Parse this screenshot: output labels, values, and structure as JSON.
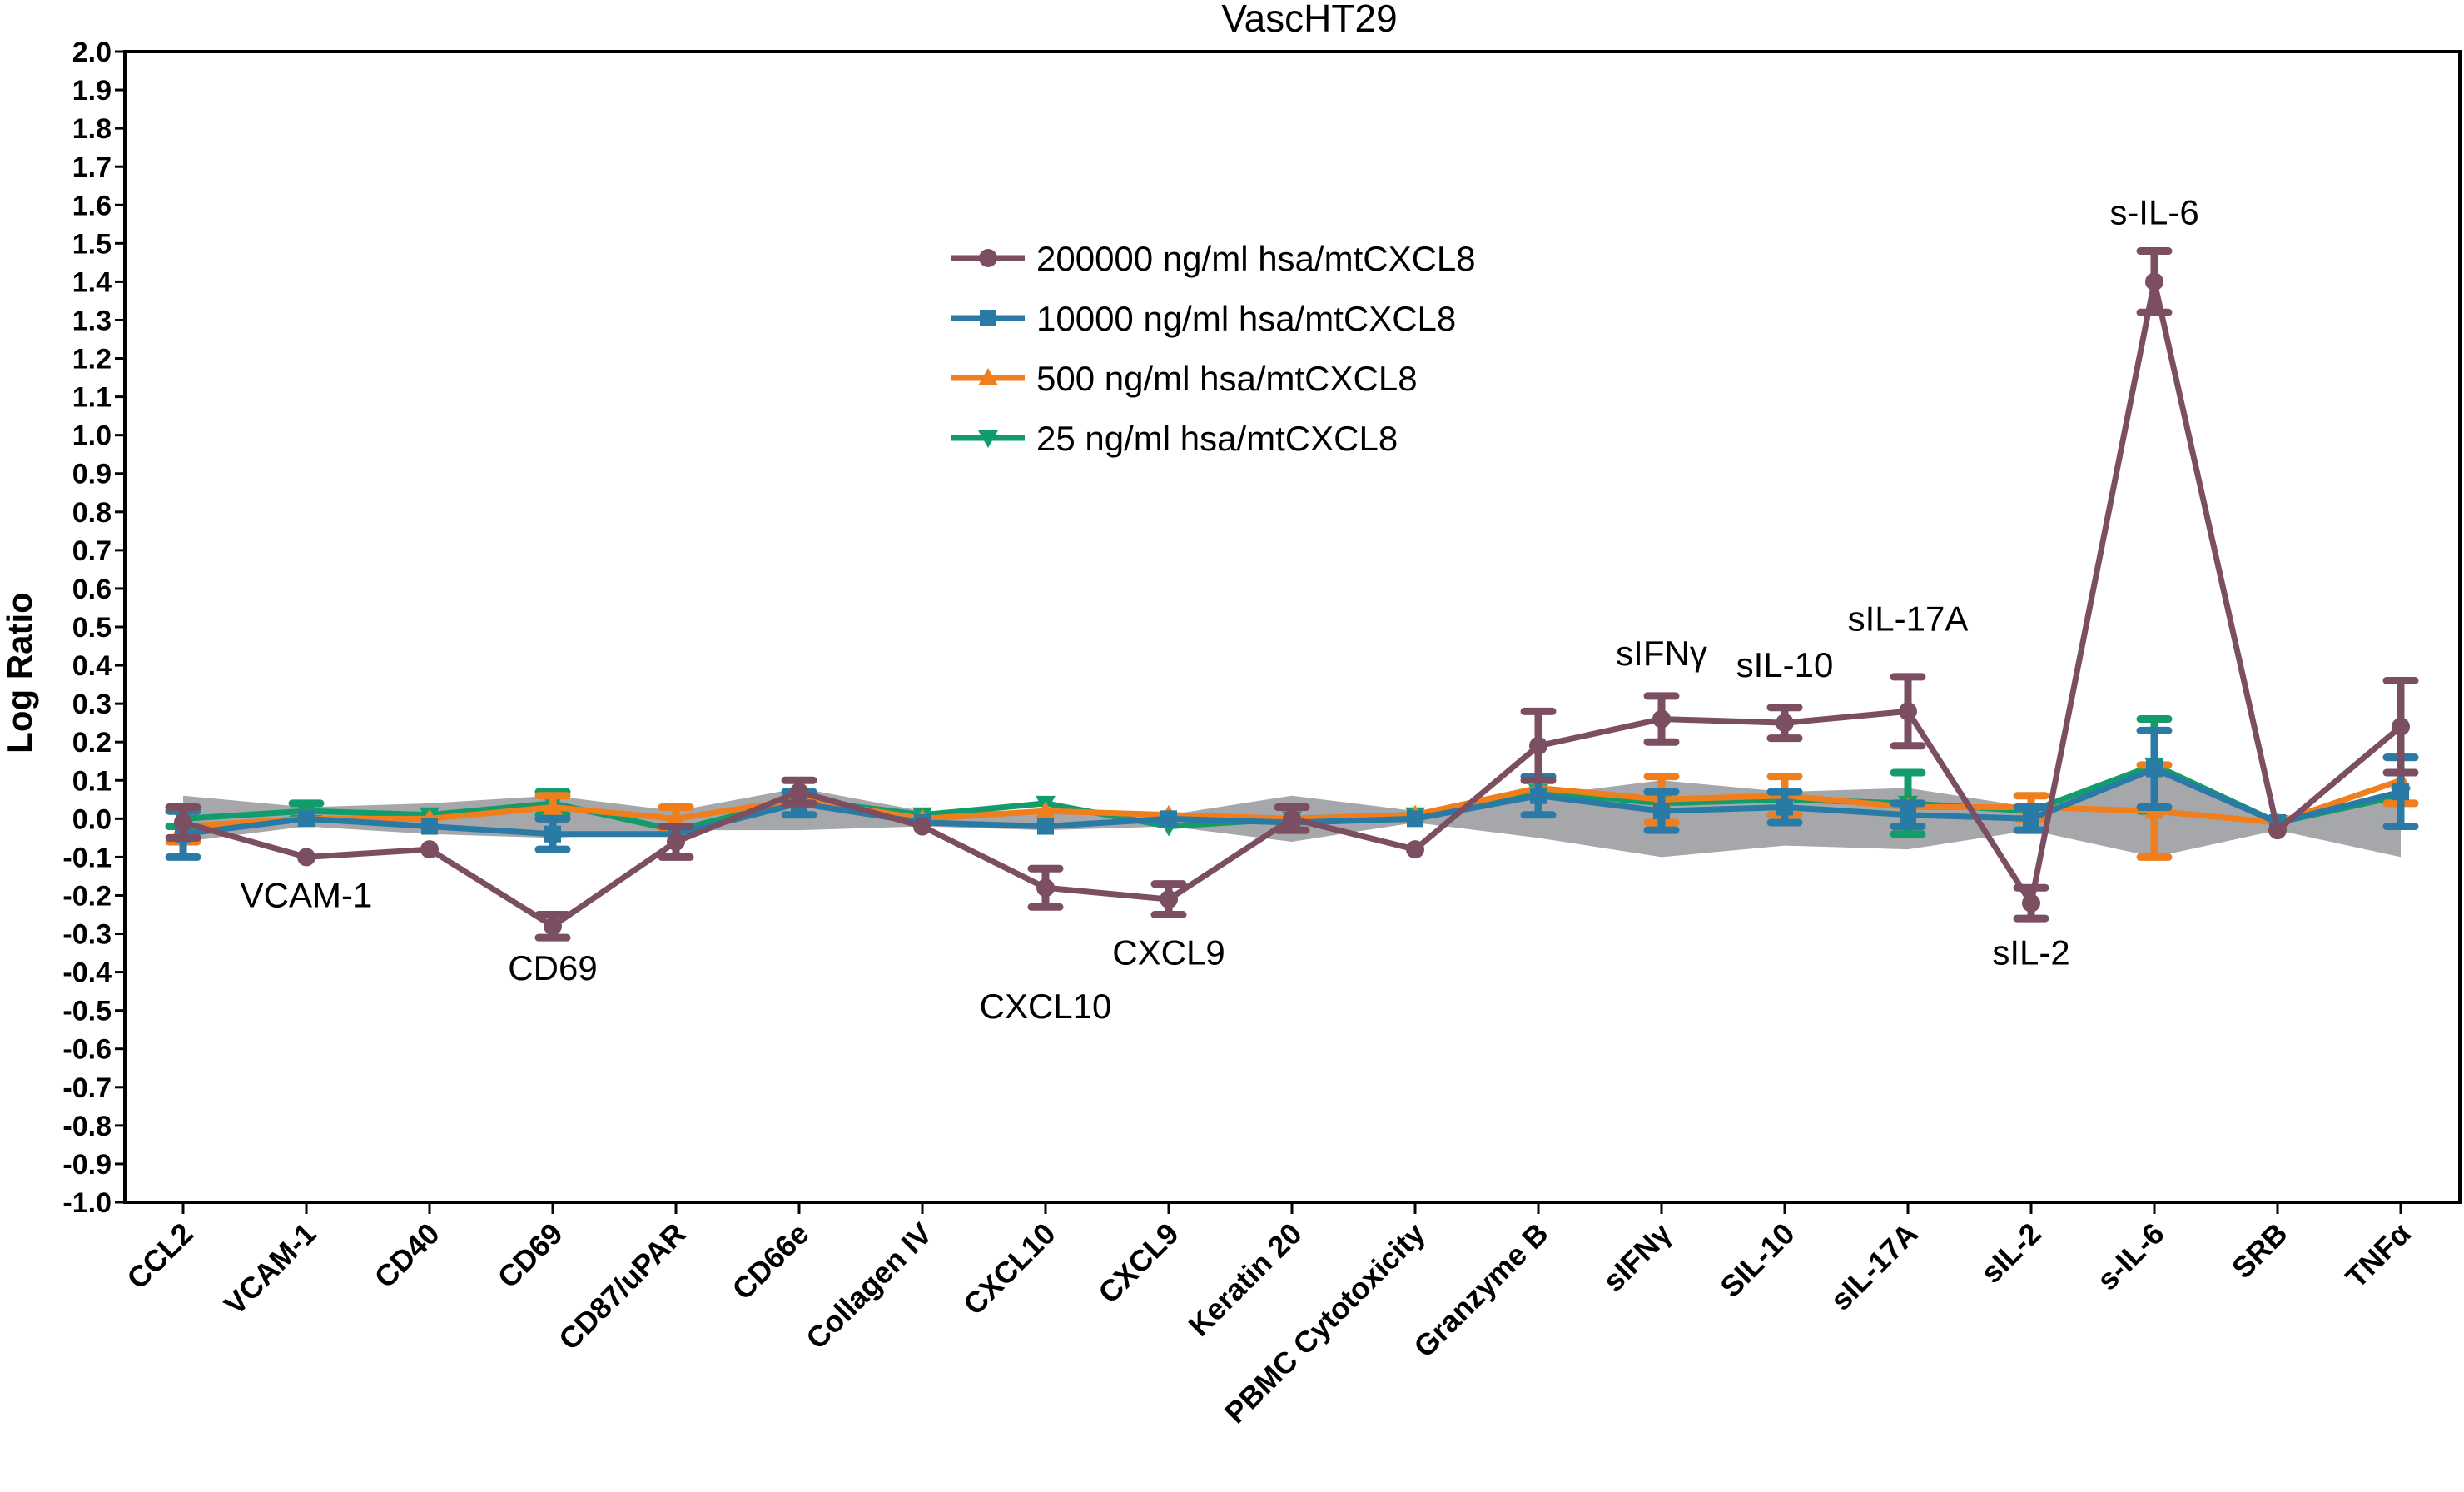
{
  "chart_data": {
    "type": "line",
    "title": "VascHT29",
    "ylabel": "Log Ratio",
    "xlabel": "",
    "ylim": [
      -1.0,
      2.0
    ],
    "ytick_step": 0.1,
    "grid": false,
    "legend_position": "top-center",
    "categories": [
      "CCL2",
      "VCAM-1",
      "CD40",
      "CD69",
      "CD87/uPAR",
      "CD66e",
      "Collagen IV",
      "CXCL10",
      "CXCL9",
      "Keratin 20",
      "PBMC Cytotoxicity",
      "Granzyme B",
      "sIFNγ",
      "SIL-10",
      "sIL-17A",
      "sIL-2",
      "s-IL-6",
      "SRB",
      "TNFα"
    ],
    "band": {
      "upper": [
        0.06,
        0.03,
        0.04,
        0.06,
        0.02,
        0.08,
        0.02,
        0.02,
        0.01,
        0.06,
        0.02,
        0.06,
        0.1,
        0.07,
        0.08,
        0.03,
        0.13,
        0.0,
        0.06
      ],
      "lower": [
        -0.06,
        -0.02,
        -0.04,
        -0.05,
        -0.03,
        -0.03,
        -0.02,
        -0.03,
        -0.02,
        -0.06,
        -0.01,
        -0.05,
        -0.1,
        -0.07,
        -0.08,
        -0.03,
        -0.1,
        -0.03,
        -0.1
      ]
    },
    "series": [
      {
        "name": "200000 ng/ml hsa/mtCXCL8",
        "color": "#7b4e62",
        "marker": "circle",
        "values": [
          -0.01,
          -0.1,
          -0.08,
          -0.28,
          -0.06,
          0.07,
          -0.02,
          -0.18,
          -0.21,
          0.0,
          -0.08,
          0.19,
          0.26,
          0.25,
          0.28,
          -0.22,
          1.4,
          -0.03,
          0.24
        ],
        "errors": [
          0.04,
          0.0,
          0.0,
          0.03,
          0.04,
          0.03,
          0.0,
          0.05,
          0.04,
          0.03,
          0.0,
          0.09,
          0.06,
          0.04,
          0.09,
          0.04,
          0.08,
          0.0,
          0.12
        ]
      },
      {
        "name": "10000 ng/ml hsa/mtCXCL8",
        "color": "#2a7aa6",
        "marker": "square",
        "values": [
          -0.04,
          0.0,
          -0.02,
          -0.04,
          -0.04,
          0.04,
          -0.01,
          -0.02,
          0.0,
          -0.01,
          0.0,
          0.06,
          0.02,
          0.03,
          0.01,
          0.0,
          0.13,
          -0.01,
          0.07
        ],
        "errors": [
          0.06,
          0.0,
          0.0,
          0.04,
          0.0,
          0.03,
          0.0,
          0.0,
          0.0,
          0.0,
          0.0,
          0.05,
          0.05,
          0.04,
          0.03,
          0.03,
          0.1,
          0.0,
          0.09
        ]
      },
      {
        "name": "500 ng/ml hsa/mtCXCL8",
        "color": "#f07e1c",
        "marker": "triangle-up",
        "values": [
          -0.02,
          0.0,
          0.0,
          0.03,
          0.0,
          0.05,
          0.0,
          0.02,
          0.01,
          0.0,
          0.01,
          0.08,
          0.05,
          0.06,
          0.03,
          0.03,
          0.02,
          -0.01,
          0.1
        ],
        "errors": [
          0.04,
          0.0,
          0.0,
          0.03,
          0.03,
          0.0,
          0.0,
          0.0,
          0.0,
          0.0,
          0.0,
          0.0,
          0.06,
          0.05,
          0.0,
          0.03,
          0.12,
          0.0,
          0.06
        ]
      },
      {
        "name": "25 ng/ml hsa/mtCXCL8",
        "color": "#129b6b",
        "marker": "triangle-down",
        "values": [
          0.0,
          0.02,
          0.01,
          0.04,
          -0.03,
          0.05,
          0.01,
          0.04,
          -0.02,
          0.0,
          0.01,
          0.07,
          0.04,
          0.05,
          0.04,
          0.02,
          0.14,
          -0.01,
          0.06
        ],
        "errors": [
          0.02,
          0.02,
          0.0,
          0.03,
          0.0,
          0.0,
          0.0,
          0.0,
          0.0,
          0.0,
          0.0,
          0.0,
          0.0,
          0.0,
          0.08,
          0.0,
          0.12,
          0.0,
          0.0
        ]
      }
    ],
    "annotations": [
      {
        "text": "VCAM-1",
        "category": "VCAM-1",
        "y": -0.23
      },
      {
        "text": "CD69",
        "category": "CD69",
        "y": -0.42
      },
      {
        "text": "CXCL10",
        "category": "CXCL10",
        "y": -0.52
      },
      {
        "text": "CXCL9",
        "category": "CXCL9",
        "y": -0.38
      },
      {
        "text": "sIFNγ",
        "category": "sIFNγ",
        "y": 0.4
      },
      {
        "text": "sIL-10",
        "category": "SIL-10",
        "y": 0.37
      },
      {
        "text": "sIL-17A",
        "category": "sIL-17A",
        "y": 0.49
      },
      {
        "text": "sIL-2",
        "category": "sIL-2",
        "y": -0.38
      },
      {
        "text": "s-IL-6",
        "category": "s-IL-6",
        "y": 1.55
      }
    ]
  }
}
